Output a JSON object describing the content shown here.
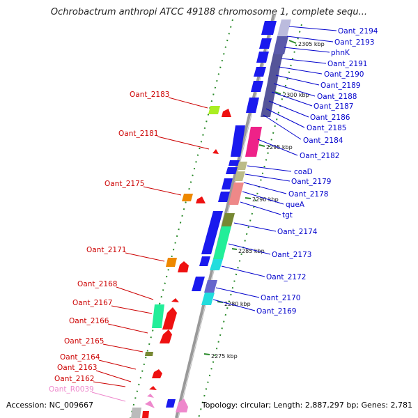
{
  "title": "Ochrobactrum anthropi ATCC 49188 chromosome 1, complete sequ...",
  "footer": {
    "accession": "Accession: NC_009667",
    "summary": "Topology: circular; Length: 2,887,297 bp; Genes: 2,781"
  },
  "colors": {
    "forward_label": "#0000cc",
    "reverse_label": "#cc0000",
    "rna_label": "#ee88cc",
    "backbone": "#999999"
  },
  "ticks": [
    {
      "label": "2305 kbp"
    },
    {
      "label": "2300 kbp"
    },
    {
      "label": "2295 kbp"
    },
    {
      "label": "2290 kbp"
    },
    {
      "label": "2285 kbp"
    },
    {
      "label": "2280 kbp"
    },
    {
      "label": "2275 kbp"
    }
  ],
  "right_labels": [
    {
      "name": "Oant_2194"
    },
    {
      "name": "Oant_2193"
    },
    {
      "name": "phnK"
    },
    {
      "name": "Oant_2191"
    },
    {
      "name": "Oant_2190"
    },
    {
      "name": "Oant_2189"
    },
    {
      "name": "Oant_2188"
    },
    {
      "name": "Oant_2187"
    },
    {
      "name": "Oant_2186"
    },
    {
      "name": "Oant_2185"
    },
    {
      "name": "Oant_2184"
    },
    {
      "name": "Oant_2182"
    },
    {
      "name": "coaD"
    },
    {
      "name": "Oant_2179"
    },
    {
      "name": "Oant_2178"
    },
    {
      "name": "queA"
    },
    {
      "name": "tgt"
    },
    {
      "name": "Oant_2174"
    },
    {
      "name": "Oant_2173"
    },
    {
      "name": "Oant_2172"
    },
    {
      "name": "Oant_2170"
    },
    {
      "name": "Oant_2169"
    }
  ],
  "left_labels": [
    {
      "name": "Oant_2183"
    },
    {
      "name": "Oant_2181"
    },
    {
      "name": "Oant_2175"
    },
    {
      "name": "Oant_2171"
    },
    {
      "name": "Oant_2168"
    },
    {
      "name": "Oant_2167"
    },
    {
      "name": "Oant_2166"
    },
    {
      "name": "Oant_2165"
    },
    {
      "name": "Oant_2164"
    },
    {
      "name": "Oant_2163"
    },
    {
      "name": "Oant_2162"
    },
    {
      "name": "Oant_R0039"
    }
  ]
}
